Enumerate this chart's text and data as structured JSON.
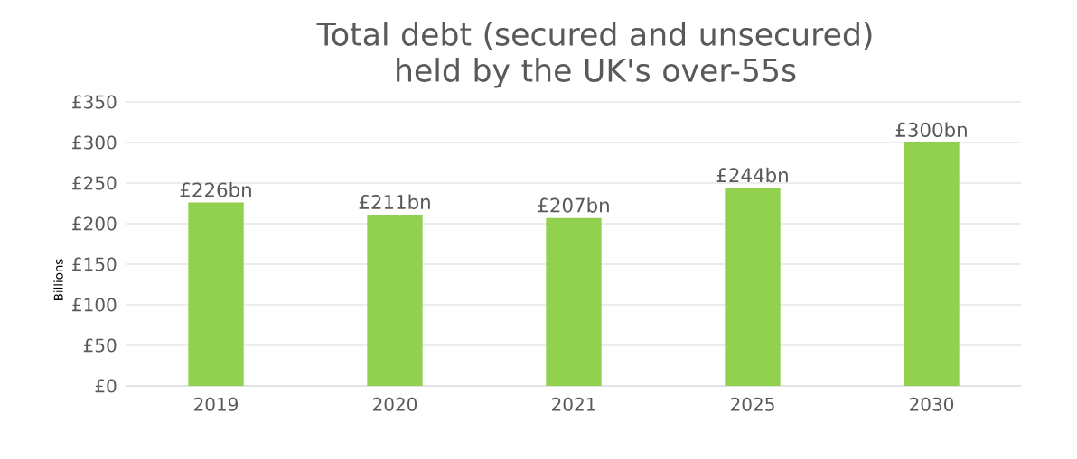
{
  "chart_data": {
    "type": "bar",
    "title": "Total debt (secured and unsecured) held by the UK's over-55s",
    "ylabel": "Billions",
    "categories": [
      "2019",
      "2020",
      "2021",
      "2025",
      "2030"
    ],
    "values": [
      226,
      211,
      207,
      244,
      300
    ],
    "value_labels": [
      "£226bn",
      "£211bn",
      "£207bn",
      "£244bn",
      "£300bn"
    ],
    "color": "#92d050",
    "ylim": [
      0,
      350
    ],
    "yticks": [
      {
        "value": 0,
        "label": "£0"
      },
      {
        "value": 50,
        "label": "£50"
      },
      {
        "value": 100,
        "label": "£100"
      },
      {
        "value": 150,
        "label": "£150"
      },
      {
        "value": 200,
        "label": "£200"
      },
      {
        "value": 250,
        "label": "£250"
      },
      {
        "value": 300,
        "label": "£300"
      },
      {
        "value": 350,
        "label": "£350"
      }
    ],
    "grid": "y"
  }
}
